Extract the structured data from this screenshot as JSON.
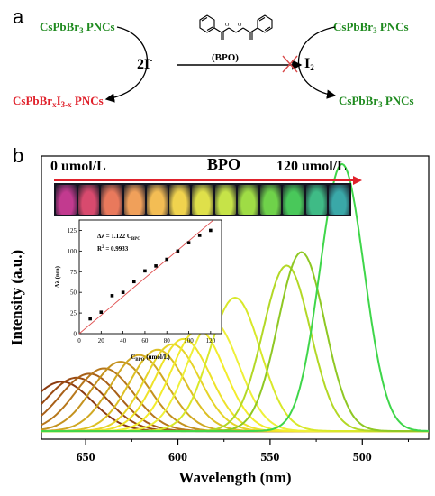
{
  "panel_a": {
    "label": "a",
    "left_top": "CsPbBr",
    "left_top_sub": "3",
    "left_top_suffix": " PNCs",
    "left_bottom_prefix": "CsPbBr",
    "left_bottom_x": "x",
    "left_bottom_mid": "I",
    "left_bottom_sub": "3-x",
    "left_bottom_suffix": " PNCs",
    "iodide": "2I",
    "iodide_sup": "-",
    "reagent": "(BPO)",
    "iodine": "I",
    "iodine_sub": "2",
    "right_top": "CsPbBr",
    "right_top_sub": "3",
    "right_top_suffix": " PNCs",
    "right_bottom": "CsPbBr",
    "right_bottom_sub": "3",
    "right_bottom_suffix": " PNCs"
  },
  "panel_b": {
    "label": "b",
    "start_conc": "0 umol/L",
    "bpo": "BPO",
    "end_conc": "120 umol/L",
    "vial_colors": [
      "#c23a8f",
      "#d84a6e",
      "#e9795c",
      "#f0a05a",
      "#f3bd54",
      "#f0d34e",
      "#dfe04a",
      "#c6e348",
      "#9fdc45",
      "#6fd24a",
      "#49c85a",
      "#3fbb86",
      "#3aa8a8"
    ]
  },
  "chart_data": [
    {
      "type": "line",
      "title": "",
      "xlabel": "Wavelength (nm)",
      "ylabel": "Intensity (a.u.)",
      "x_reversed": true,
      "xlim": [
        674,
        464
      ],
      "ylim": [
        0,
        1.05
      ],
      "x_ticks": [
        650,
        600,
        550,
        500
      ],
      "x_tick_labels": [
        "650",
        "600",
        "550",
        "500"
      ],
      "grid": false,
      "series": [
        {
          "peak_nm": 663,
          "peak": 0.185,
          "color": "#8b3a10"
        },
        {
          "peak_nm": 655,
          "peak": 0.2,
          "color": "#9a4a12"
        },
        {
          "peak_nm": 648,
          "peak": 0.215,
          "color": "#a86018"
        },
        {
          "peak_nm": 640,
          "peak": 0.235,
          "color": "#b7781c"
        },
        {
          "peak_nm": 631,
          "peak": 0.26,
          "color": "#c4921e"
        },
        {
          "peak_nm": 621,
          "peak": 0.285,
          "color": "#d0a822"
        },
        {
          "peak_nm": 611,
          "peak": 0.305,
          "color": "#dcbf24"
        },
        {
          "peak_nm": 603,
          "peak": 0.325,
          "color": "#e6d428"
        },
        {
          "peak_nm": 597,
          "peak": 0.345,
          "color": "#eee22a"
        },
        {
          "peak_nm": 589,
          "peak": 0.38,
          "color": "#f3ec2c"
        },
        {
          "peak_nm": 581,
          "peak": 0.41,
          "color": "#eef03a"
        },
        {
          "peak_nm": 569,
          "peak": 0.5,
          "color": "#d8e82a"
        },
        {
          "peak_nm": 541,
          "peak": 0.62,
          "color": "#b3d826"
        },
        {
          "peak_nm": 533,
          "peak": 0.67,
          "color": "#8fc824"
        },
        {
          "peak_nm": 511,
          "peak": 1.0,
          "color": "#3fd64a"
        }
      ]
    },
    {
      "type": "scatter",
      "title": "",
      "xlabel": "C",
      "xlabel_sub": "BPO",
      "xlabel_unit": " (umol/L)",
      "ylabel": "Δλ (nm)",
      "xlim": [
        0,
        130
      ],
      "ylim": [
        0,
        137.5
      ],
      "x_ticks": [
        0,
        20,
        40,
        60,
        80,
        100,
        120
      ],
      "y_ticks": [
        0,
        25,
        50,
        75,
        100,
        125
      ],
      "x": [
        10,
        20,
        30,
        40,
        50,
        60,
        70,
        80,
        90,
        100,
        110,
        120
      ],
      "y": [
        18,
        26,
        46,
        50,
        63,
        76,
        82,
        90,
        100,
        110,
        119,
        125
      ],
      "fit": {
        "slope": 1.122,
        "intercept": 0
      },
      "annotation_line1": "Δλ = 1.122 C",
      "annotation_line1_sub": "BPO",
      "annotation_line2": "R",
      "annotation_line2_sup": "2",
      "annotation_line2_rest": " = 0.9933"
    }
  ]
}
